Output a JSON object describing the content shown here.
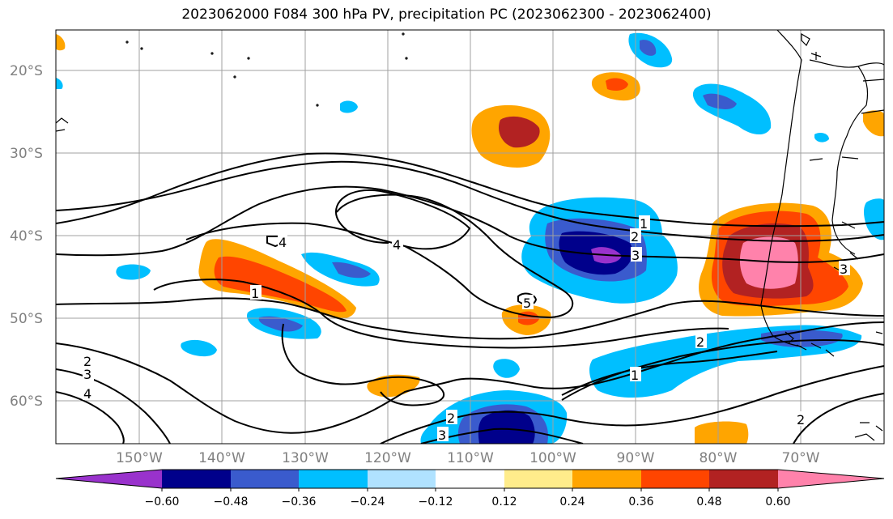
{
  "title": "2023062000 F084 300 hPa PV, precipitation PC (2023062300 - 2023062400)",
  "lat_labels": [
    "20°S",
    "30°S",
    "40°S",
    "50°S",
    "60°S"
  ],
  "lon_labels": [
    "150°W",
    "140°W",
    "130°W",
    "120°W",
    "110°W",
    "100°W",
    "90°W",
    "80°W",
    "70°W"
  ],
  "colorbar": {
    "tick_labels": [
      "−0.60",
      "−0.48",
      "−0.36",
      "−0.24",
      "−0.12",
      "0.12",
      "0.24",
      "0.36",
      "0.48",
      "0.60"
    ],
    "colors": [
      "#9932cc",
      "#00008b",
      "#3a5bcd",
      "#00bfff",
      "#b0e2ff",
      "#ffffff",
      "#ffec8b",
      "#ffa500",
      "#ff4500",
      "#b22222",
      "#ff82ab"
    ]
  },
  "contour_labels": [
    "1",
    "2",
    "3",
    "4",
    "5"
  ],
  "colors": {
    "pv_contour": "#000000",
    "coastline": "#000000",
    "gridline": "#a0a0a0",
    "tick_text": "#808080"
  }
}
